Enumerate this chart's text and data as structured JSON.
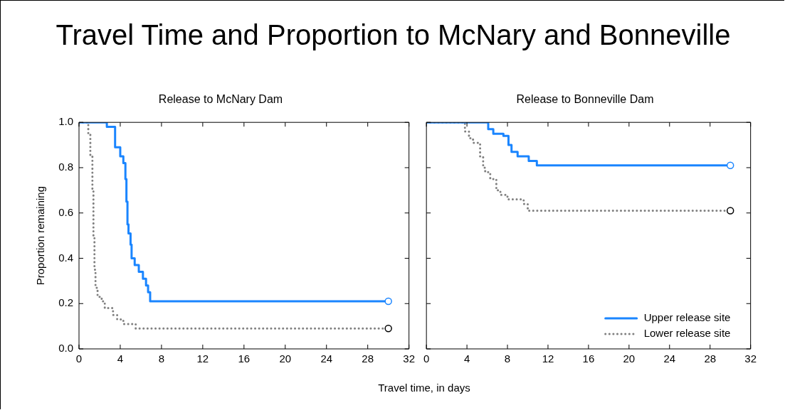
{
  "chart_data": [
    {
      "type": "step",
      "title": "Travel Time and Proportion to McNary and Bonneville",
      "subtitle": "Release to McNary Dam",
      "xlabel": "Travel time, in days",
      "ylabel": "Proportion remaining",
      "xlim": [
        0,
        32
      ],
      "xticks": [
        0,
        4,
        8,
        12,
        16,
        20,
        24,
        28,
        32
      ],
      "ylim": [
        0,
        1
      ],
      "yticks": [
        {
          "value": 0,
          "label": "0.0"
        },
        0.2,
        0.4,
        0.6,
        0.8,
        {
          "value": 1,
          "label": "1.0"
        }
      ],
      "grid": false,
      "legend": false,
      "series": [
        {
          "color": "#1a85ff",
          "line_style": "solid",
          "x": [
            0,
            2.7,
            3.5,
            4.0,
            4.3,
            4.5,
            4.6,
            4.7,
            4.8,
            5.0,
            5.1,
            5.4,
            5.8,
            6.2,
            6.5,
            6.7,
            6.9,
            30
          ],
          "values": [
            1,
            0.98,
            0.89,
            0.85,
            0.82,
            0.75,
            0.65,
            0.55,
            0.51,
            0.46,
            0.4,
            0.37,
            0.34,
            0.31,
            0.28,
            0.25,
            0.21,
            0.21
          ]
        },
        {
          "color": "#808080",
          "line_style": "dotted",
          "x": [
            0,
            0.9,
            1.1,
            1.3,
            1.4,
            1.5,
            1.6,
            1.8,
            2.2,
            2.5,
            3.3,
            3.7,
            4.3,
            5.5,
            30
          ],
          "values": [
            1,
            0.95,
            0.85,
            0.7,
            0.5,
            0.35,
            0.27,
            0.23,
            0.21,
            0.18,
            0.15,
            0.13,
            0.11,
            0.09,
            0.09
          ]
        }
      ]
    },
    {
      "type": "step",
      "subtitle": "Release to Bonneville Dam",
      "xlim": [
        0,
        32
      ],
      "xticks": [
        0,
        4,
        8,
        12,
        16,
        20,
        24,
        28,
        32
      ],
      "ylim": [
        0,
        1
      ],
      "yticks": [
        0,
        0.2,
        0.4,
        0.6,
        0.8,
        1
      ],
      "tick_labels": "x",
      "grid": false,
      "legend": "bottom right",
      "series": [
        {
          "name": "Upper release site",
          "color": "#1a85ff",
          "line_style": "solid",
          "x": [
            0,
            6.1,
            6.6,
            7.6,
            8.1,
            8.4,
            9.0,
            10.1,
            10.9,
            30
          ],
          "values": [
            1,
            0.97,
            0.95,
            0.94,
            0.9,
            0.87,
            0.85,
            0.83,
            0.81,
            0.81
          ]
        },
        {
          "name": "Lower release site",
          "color": "#808080",
          "line_style": "dotted",
          "x": [
            0,
            3.8,
            4.2,
            4.6,
            5.3,
            5.6,
            5.8,
            6.3,
            6.9,
            7.3,
            8.0,
            9.6,
            10.0,
            30
          ],
          "values": [
            1,
            0.96,
            0.93,
            0.91,
            0.85,
            0.8,
            0.78,
            0.75,
            0.7,
            0.68,
            0.66,
            0.64,
            0.61,
            0.61
          ]
        }
      ]
    }
  ]
}
